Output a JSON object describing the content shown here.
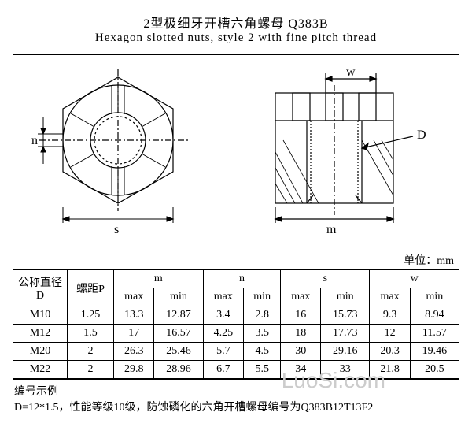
{
  "header": {
    "title_cn": "2型极细牙开槽六角螺母   Q383B",
    "title_en": "Hexagon slotted nuts, style 2 with fine pitch thread"
  },
  "diagram": {
    "labels": {
      "n": "n",
      "s": "s",
      "w": "w",
      "m": "m",
      "D": "D"
    },
    "line_color": "#000000",
    "bg_color": "#ffffff"
  },
  "unit_label": "单位：mm",
  "table": {
    "header_row1": [
      "公称直径\nD",
      "螺距P",
      "m",
      "n",
      "s",
      "w"
    ],
    "header_row2": [
      "max",
      "min",
      "max",
      "min",
      "max",
      "min",
      "max",
      "min"
    ],
    "rows": [
      [
        "M10",
        "1.25",
        "13.3",
        "12.87",
        "3.4",
        "2.8",
        "16",
        "15.73",
        "9.3",
        "8.94"
      ],
      [
        "M12",
        "1.5",
        "17",
        "16.57",
        "4.25",
        "3.5",
        "18",
        "17.73",
        "12",
        "11.57"
      ],
      [
        "M20",
        "2",
        "26.3",
        "25.46",
        "5.7",
        "4.5",
        "30",
        "29.16",
        "20.3",
        "19.46"
      ],
      [
        "M22",
        "2",
        "29.8",
        "28.96",
        "6.7",
        "5.5",
        "34",
        "33",
        "21.8",
        "20.5"
      ]
    ]
  },
  "footnote": {
    "line1": "编号示例",
    "line2": "D=12*1.5，性能等级10级，防蚀磷化的六角开槽螺母编号为Q383B12T13F2"
  },
  "watermark": "LuoSi.com"
}
